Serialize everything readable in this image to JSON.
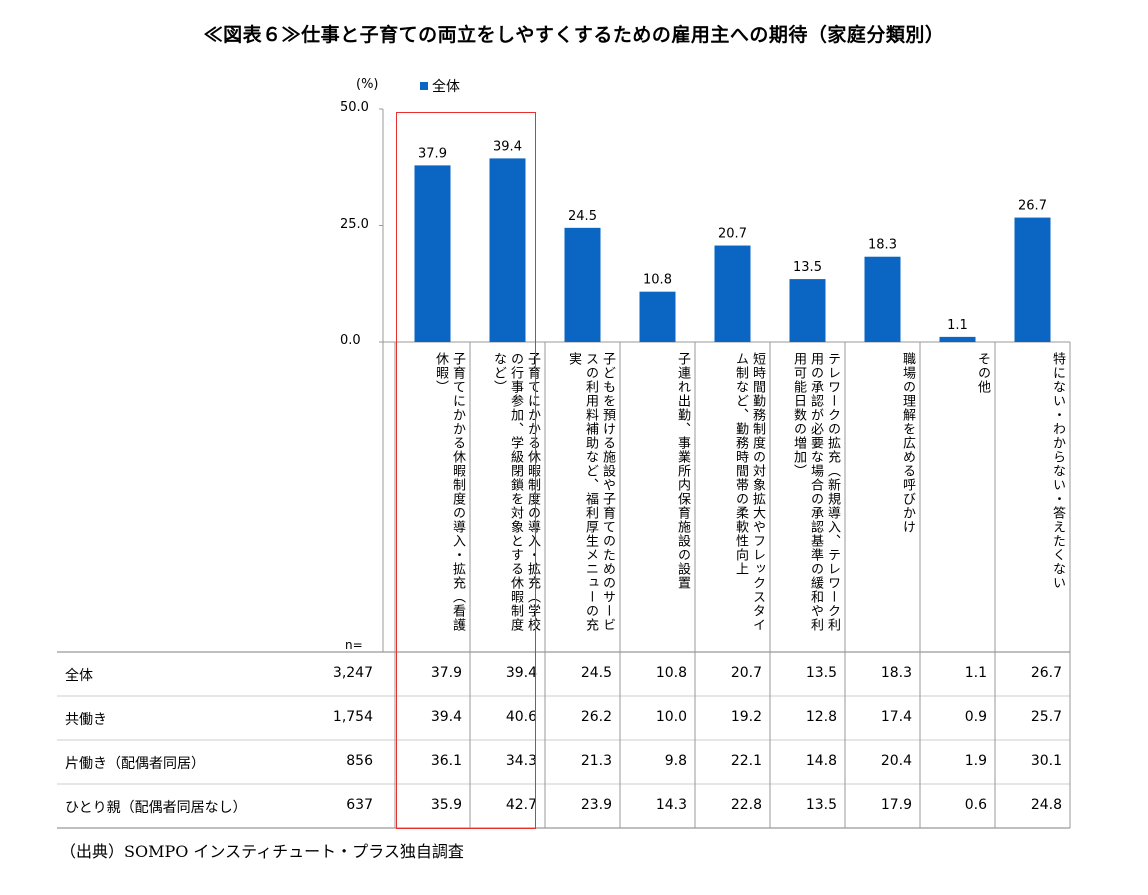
{
  "title": "≪図表６≫仕事と子育ての両立をしやすくするための雇用主への期待（家庭分類別）",
  "unit": "(%)",
  "legend": {
    "label": "全体",
    "color": "#0a66c2"
  },
  "n_label": "n=",
  "source": "（出典）SOMPO インスティチュート・プラス独自調査",
  "chart_data": {
    "type": "bar",
    "title": "≪図表６≫仕事と子育ての両立をしやすくするための雇用主への期待（家庭分類別）",
    "ylabel": "(%)",
    "xlabel": "",
    "ylim": [
      0,
      50
    ],
    "yticks": [
      "50.0",
      "25.0",
      "0.0"
    ],
    "legend_position": "top",
    "categories": [
      "子育てにかかる休暇制度の導入・拡充（看護休暇）",
      "子育てにかかる休暇制度の導入・拡充（学校の行事参加、学級閉鎖を対象とする休暇制度など）",
      "子どもを預ける施設や子育てのためのサービスの利用料補助など、福利厚生メニューの充実",
      "子連れ出勤、事業所内保育施設の設置",
      "短時間勤務制度の対象拡大やフレックスタイム制など、勤務時間帯の柔軟性向上",
      "テレワークの拡充（新規導入、テレワーク利用の承認が必要な場合の承認基準の緩和や利用可能日数の増加）",
      "職場の理解を広める呼びかけ",
      "その他",
      "特にない・わからない・答えたくない"
    ],
    "series": [
      {
        "name": "全体",
        "values": [
          37.9,
          39.4,
          24.5,
          10.8,
          20.7,
          13.5,
          18.3,
          1.1,
          26.7
        ],
        "labels": [
          "37.9",
          "39.4",
          "24.5",
          "10.8",
          "20.7",
          "13.5",
          "18.3",
          "1.1",
          "26.7"
        ]
      }
    ],
    "table": [
      {
        "label": "全体",
        "n": "3,247",
        "values": [
          "37.9",
          "39.4",
          "24.5",
          "10.8",
          "20.7",
          "13.5",
          "18.3",
          "1.1",
          "26.7"
        ]
      },
      {
        "label": "共働き",
        "n": "1,754",
        "values": [
          "39.4",
          "40.6",
          "26.2",
          "10.0",
          "19.2",
          "12.8",
          "17.4",
          "0.9",
          "25.7"
        ]
      },
      {
        "label": "片働き（配偶者同居）",
        "n": "856",
        "values": [
          "36.1",
          "34.3",
          "21.3",
          "9.8",
          "22.1",
          "14.8",
          "20.4",
          "1.9",
          "30.1"
        ]
      },
      {
        "label": "ひとり親（配偶者同居なし）",
        "n": "637",
        "values": [
          "35.9",
          "42.7",
          "23.9",
          "14.3",
          "22.8",
          "13.5",
          "17.9",
          "0.6",
          "24.8"
        ]
      }
    ]
  },
  "colors": {
    "bar": "#0a66c2",
    "highlight": "#e8302c",
    "grid": "#999999"
  }
}
